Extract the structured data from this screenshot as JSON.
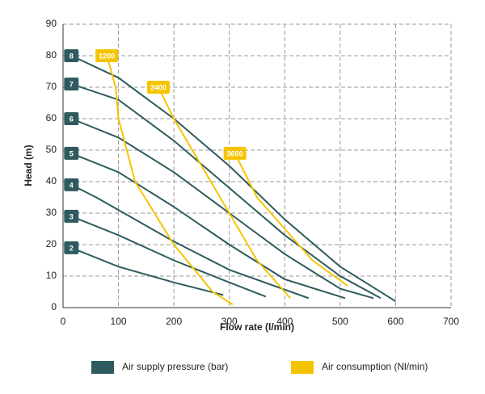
{
  "chart_data": {
    "type": "line",
    "x_label": "Flow rate (l/min)",
    "y_label": "Head (m)",
    "xlim": [
      0,
      700
    ],
    "xticks": [
      0,
      100,
      200,
      300,
      400,
      500,
      600,
      700
    ],
    "ylim": [
      0,
      90
    ],
    "yticks": [
      0,
      10,
      20,
      30,
      40,
      50,
      60,
      70,
      80,
      90
    ],
    "grid": true,
    "legend": [
      {
        "label": "Air supply pressure (bar)",
        "color": "#2e5b5f"
      },
      {
        "label": "Air consumption (Nl/min)",
        "color": "#f5c400"
      }
    ],
    "series": [
      {
        "name": "8",
        "color": "#2e5b5f",
        "x": [
          15,
          100,
          200,
          300,
          400,
          500,
          600
        ],
        "values": [
          80,
          73,
          60,
          45,
          28,
          13,
          2
        ]
      },
      {
        "name": "7",
        "color": "#2e5b5f",
        "x": [
          15,
          100,
          200,
          300,
          400,
          500,
          573
        ],
        "values": [
          71,
          66,
          53,
          38,
          23,
          10,
          3
        ]
      },
      {
        "name": "6",
        "color": "#2e5b5f",
        "x": [
          15,
          100,
          200,
          300,
          400,
          500,
          560
        ],
        "values": [
          60,
          54,
          43,
          30,
          17,
          6,
          3
        ]
      },
      {
        "name": "5",
        "color": "#2e5b5f",
        "x": [
          15,
          100,
          200,
          300,
          400,
          509
        ],
        "values": [
          49,
          43,
          32,
          20,
          9,
          3
        ]
      },
      {
        "name": "4",
        "color": "#2e5b5f",
        "x": [
          15,
          60,
          100,
          200,
          300,
          443
        ],
        "values": [
          39,
          35,
          31,
          21,
          12,
          3
        ]
      },
      {
        "name": "3",
        "color": "#2e5b5f",
        "x": [
          15,
          100,
          200,
          300,
          366
        ],
        "values": [
          29,
          23,
          15,
          8,
          3.5
        ]
      },
      {
        "name": "2",
        "color": "#2e5b5f",
        "x": [
          15,
          100,
          200,
          289
        ],
        "values": [
          19,
          13,
          8,
          4
        ]
      },
      {
        "name": "1200",
        "color": "#f5c400",
        "x": [
          79,
          95,
          100,
          130,
          200,
          270,
          306
        ],
        "values": [
          80,
          70,
          60,
          40,
          20,
          5,
          1
        ]
      },
      {
        "name": "2400",
        "color": "#f5c400",
        "x": [
          172,
          200,
          250,
          300,
          350,
          400,
          410
        ],
        "values": [
          70,
          60,
          45,
          30,
          15,
          5,
          3
        ]
      },
      {
        "name": "3600",
        "color": "#f5c400",
        "x": [
          310,
          350,
          400,
          450,
          513
        ],
        "values": [
          49,
          35,
          25,
          15,
          7
        ]
      }
    ]
  }
}
